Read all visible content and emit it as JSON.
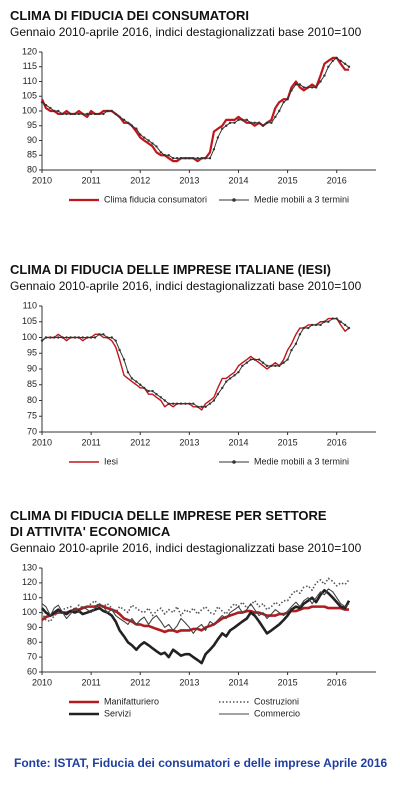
{
  "chart_data": [
    {
      "type": "line",
      "title": "CLIMA DI FIDUCIA DEI CONSUMATORI",
      "subtitle": "Gennaio 2010-aprile 2016, indici destagionalizzati base 2010=100",
      "x": [
        2010,
        2010.08,
        2010.17,
        2010.25,
        2010.33,
        2010.42,
        2010.5,
        2010.58,
        2010.67,
        2010.75,
        2010.83,
        2010.92,
        2011,
        2011.08,
        2011.17,
        2011.25,
        2011.33,
        2011.42,
        2011.5,
        2011.58,
        2011.67,
        2011.75,
        2011.83,
        2011.92,
        2012,
        2012.08,
        2012.17,
        2012.25,
        2012.33,
        2012.42,
        2012.5,
        2012.58,
        2012.67,
        2012.75,
        2012.83,
        2012.92,
        2013,
        2013.08,
        2013.17,
        2013.25,
        2013.33,
        2013.42,
        2013.5,
        2013.58,
        2013.67,
        2013.75,
        2013.83,
        2013.92,
        2014,
        2014.08,
        2014.17,
        2014.25,
        2014.33,
        2014.42,
        2014.5,
        2014.58,
        2014.67,
        2014.75,
        2014.83,
        2014.92,
        2015,
        2015.08,
        2015.17,
        2015.25,
        2015.33,
        2015.42,
        2015.5,
        2015.58,
        2015.67,
        2015.75,
        2015.83,
        2015.92,
        2016,
        2016.08,
        2016.17,
        2016.25
      ],
      "xlim": [
        2010,
        2016.8
      ],
      "xticks": [
        2010,
        2011,
        2012,
        2013,
        2014,
        2015,
        2016
      ],
      "ylim": [
        80,
        120
      ],
      "yticks": [
        80,
        85,
        90,
        95,
        100,
        105,
        110,
        115,
        120
      ],
      "series": [
        {
          "name": "Clima fiducia consumatori",
          "color": "#c0161b",
          "line_width": 2.2,
          "values": [
            104,
            101,
            100,
            100,
            99,
            99,
            100,
            99,
            99,
            100,
            99,
            98,
            100,
            99,
            99,
            100,
            100,
            100,
            99,
            98,
            96,
            96,
            95,
            93,
            91,
            90,
            89,
            88,
            86,
            85,
            85,
            84,
            83,
            83,
            84,
            84,
            84,
            84,
            83,
            84,
            84,
            86,
            93,
            94,
            95,
            97,
            97,
            97,
            98,
            97,
            96,
            96,
            95,
            96,
            95,
            96,
            97,
            101,
            103,
            104,
            104,
            108,
            110,
            108,
            107,
            108,
            109,
            108,
            112,
            116,
            117,
            118,
            118,
            116,
            114,
            114
          ]
        },
        {
          "name": "Medie mobili a 3 termini",
          "color": "#333333",
          "line_width": 1,
          "marker": true,
          "values": [
            103,
            102,
            101,
            100,
            100,
            99,
            99,
            99,
            99,
            99,
            99,
            99,
            99,
            99,
            99,
            99,
            100,
            100,
            99,
            98,
            97,
            96,
            95,
            94,
            92,
            91,
            90,
            89,
            88,
            86,
            85,
            85,
            84,
            84,
            84,
            84,
            84,
            84,
            84,
            84,
            84,
            84,
            87,
            91,
            94,
            95,
            96,
            96,
            97,
            97,
            97,
            96,
            96,
            96,
            95,
            96,
            96,
            98,
            100,
            103,
            104,
            107,
            109,
            109,
            108,
            108,
            108,
            108,
            110,
            112,
            115,
            117,
            118,
            117,
            116,
            115
          ]
        }
      ]
    },
    {
      "type": "line",
      "title": "CLIMA DI FIDUCIA DELLE IMPRESE ITALIANE (IESI)",
      "subtitle": "Gennaio 2010-aprile 2016, indici destagionalizzati base 2010=100",
      "x": [
        2010,
        2010.08,
        2010.17,
        2010.25,
        2010.33,
        2010.42,
        2010.5,
        2010.58,
        2010.67,
        2010.75,
        2010.83,
        2010.92,
        2011,
        2011.08,
        2011.17,
        2011.25,
        2011.33,
        2011.42,
        2011.5,
        2011.58,
        2011.67,
        2011.75,
        2011.83,
        2011.92,
        2012,
        2012.08,
        2012.17,
        2012.25,
        2012.33,
        2012.42,
        2012.5,
        2012.58,
        2012.67,
        2012.75,
        2012.83,
        2012.92,
        2013,
        2013.08,
        2013.17,
        2013.25,
        2013.33,
        2013.42,
        2013.5,
        2013.58,
        2013.67,
        2013.75,
        2013.83,
        2013.92,
        2014,
        2014.08,
        2014.17,
        2014.25,
        2014.33,
        2014.42,
        2014.5,
        2014.58,
        2014.67,
        2014.75,
        2014.83,
        2014.92,
        2015,
        2015.08,
        2015.17,
        2015.25,
        2015.33,
        2015.42,
        2015.5,
        2015.58,
        2015.67,
        2015.75,
        2015.83,
        2015.92,
        2016,
        2016.08,
        2016.17,
        2016.25
      ],
      "xlim": [
        2010,
        2016.8
      ],
      "xticks": [
        2010,
        2011,
        2012,
        2013,
        2014,
        2015,
        2016
      ],
      "ylim": [
        70,
        110
      ],
      "yticks": [
        70,
        75,
        80,
        85,
        90,
        95,
        100,
        105,
        110
      ],
      "series": [
        {
          "name": "Iesi",
          "color": "#c0161b",
          "line_width": 1.4,
          "values": [
            99,
            100,
            100,
            100,
            101,
            100,
            99,
            100,
            100,
            100,
            99,
            100,
            100,
            101,
            101,
            100,
            100,
            99,
            97,
            93,
            88,
            87,
            86,
            85,
            84,
            84,
            82,
            82,
            81,
            80,
            78,
            79,
            78,
            79,
            79,
            79,
            79,
            78,
            78,
            77,
            79,
            80,
            81,
            84,
            87,
            87,
            88,
            89,
            91,
            92,
            93,
            94,
            93,
            92,
            91,
            90,
            91,
            92,
            91,
            93,
            96,
            98,
            101,
            103,
            103,
            104,
            104,
            104,
            105,
            105,
            106,
            106,
            106,
            104,
            102,
            103
          ]
        },
        {
          "name": "Medie mobili a 3 termini",
          "color": "#333333",
          "line_width": 1,
          "marker": true,
          "values": [
            99,
            100,
            100,
            100,
            100,
            100,
            100,
            100,
            100,
            100,
            100,
            100,
            100,
            100,
            101,
            101,
            100,
            100,
            99,
            96,
            93,
            89,
            87,
            86,
            85,
            84,
            83,
            83,
            82,
            81,
            80,
            79,
            79,
            79,
            79,
            79,
            79,
            79,
            78,
            78,
            78,
            79,
            80,
            82,
            84,
            86,
            87,
            88,
            89,
            91,
            92,
            93,
            93,
            93,
            92,
            91,
            91,
            91,
            91,
            92,
            93,
            96,
            98,
            101,
            103,
            103,
            104,
            104,
            104,
            105,
            105,
            106,
            106,
            105,
            104,
            103
          ]
        }
      ]
    },
    {
      "type": "line",
      "title": "CLIMA DI FIDUCIA DELLE IMPRESE PER SETTORE DI ATTIVITA' ECONOMICA",
      "subtitle": "Gennaio 2010-aprile 2016, indici destagionalizzati base 2010=100",
      "x": [
        2010,
        2010.08,
        2010.17,
        2010.25,
        2010.33,
        2010.42,
        2010.5,
        2010.58,
        2010.67,
        2010.75,
        2010.83,
        2010.92,
        2011,
        2011.08,
        2011.17,
        2011.25,
        2011.33,
        2011.42,
        2011.5,
        2011.58,
        2011.67,
        2011.75,
        2011.83,
        2011.92,
        2012,
        2012.08,
        2012.17,
        2012.25,
        2012.33,
        2012.42,
        2012.5,
        2012.58,
        2012.67,
        2012.75,
        2012.83,
        2012.92,
        2013,
        2013.08,
        2013.17,
        2013.25,
        2013.33,
        2013.42,
        2013.5,
        2013.58,
        2013.67,
        2013.75,
        2013.83,
        2013.92,
        2014,
        2014.08,
        2014.17,
        2014.25,
        2014.33,
        2014.42,
        2014.5,
        2014.58,
        2014.67,
        2014.75,
        2014.83,
        2014.92,
        2015,
        2015.08,
        2015.17,
        2015.25,
        2015.33,
        2015.42,
        2015.5,
        2015.58,
        2015.67,
        2015.75,
        2015.83,
        2015.92,
        2016,
        2016.08,
        2016.17,
        2016.25
      ],
      "xlim": [
        2010,
        2016.8
      ],
      "xticks": [
        2010,
        2011,
        2012,
        2013,
        2014,
        2015,
        2016
      ],
      "ylim": [
        60,
        130
      ],
      "yticks": [
        60,
        70,
        80,
        90,
        100,
        110,
        120,
        130
      ],
      "series": [
        {
          "name": "Manifatturiero",
          "color": "#b01c20",
          "line_width": 2.6,
          "values": [
            95,
            97,
            98,
            99,
            100,
            100,
            100,
            101,
            102,
            102,
            103,
            104,
            104,
            104,
            105,
            104,
            103,
            102,
            101,
            99,
            96,
            95,
            94,
            92,
            92,
            91,
            91,
            90,
            89,
            88,
            87,
            88,
            88,
            87,
            88,
            88,
            88,
            89,
            89,
            88,
            90,
            91,
            92,
            94,
            96,
            97,
            98,
            99,
            100,
            100,
            101,
            101,
            100,
            100,
            99,
            98,
            98,
            98,
            99,
            99,
            100,
            101,
            101,
            102,
            103,
            103,
            104,
            104,
            104,
            104,
            103,
            103,
            103,
            103,
            102,
            102
          ]
        },
        {
          "name": "Costruzioni",
          "color": "#555555",
          "line_width": 1.6,
          "style": "dotted",
          "values": [
            100,
            95,
            94,
            98,
            100,
            102,
            103,
            104,
            102,
            105,
            103,
            104,
            106,
            108,
            103,
            104,
            106,
            103,
            100,
            104,
            102,
            100,
            105,
            103,
            101,
            100,
            103,
            98,
            101,
            103,
            99,
            102,
            100,
            104,
            98,
            102,
            100,
            103,
            99,
            102,
            104,
            100,
            99,
            104,
            101,
            99,
            103,
            106,
            104,
            107,
            103,
            105,
            108,
            104,
            106,
            102,
            104,
            107,
            105,
            108,
            108,
            112,
            115,
            113,
            117,
            118,
            115,
            120,
            122,
            119,
            123,
            121,
            118,
            120,
            119,
            122
          ]
        },
        {
          "name": "Servizi",
          "color": "#222222",
          "line_width": 2.6,
          "values": [
            103,
            100,
            98,
            100,
            102,
            100,
            99,
            101,
            100,
            101,
            99,
            100,
            101,
            102,
            103,
            101,
            100,
            98,
            94,
            88,
            84,
            80,
            78,
            75,
            78,
            80,
            78,
            76,
            74,
            72,
            73,
            70,
            75,
            73,
            71,
            72,
            72,
            70,
            68,
            66,
            72,
            75,
            78,
            82,
            86,
            84,
            88,
            90,
            92,
            94,
            96,
            100,
            98,
            94,
            90,
            86,
            88,
            90,
            92,
            95,
            98,
            102,
            104,
            103,
            106,
            108,
            110,
            107,
            112,
            115,
            113,
            110,
            107,
            104,
            103,
            108
          ]
        },
        {
          "name": "Commercio",
          "color": "#444444",
          "line_width": 1.1,
          "values": [
            106,
            104,
            98,
            103,
            105,
            100,
            96,
            99,
            103,
            100,
            104,
            102,
            100,
            103,
            106,
            104,
            100,
            102,
            98,
            96,
            94,
            92,
            96,
            92,
            95,
            97,
            92,
            96,
            98,
            94,
            90,
            92,
            88,
            91,
            96,
            93,
            90,
            86,
            90,
            92,
            88,
            94,
            92,
            95,
            98,
            96,
            100,
            102,
            104,
            100,
            102,
            106,
            102,
            98,
            100,
            96,
            99,
            102,
            100,
            98,
            101,
            104,
            107,
            104,
            108,
            110,
            106,
            110,
            114,
            112,
            116,
            114,
            110,
            106,
            104,
            106
          ]
        }
      ]
    }
  ],
  "source": "Fonte: ISTAT, Fiducia dei consumatori e delle imprese Aprile 2016"
}
